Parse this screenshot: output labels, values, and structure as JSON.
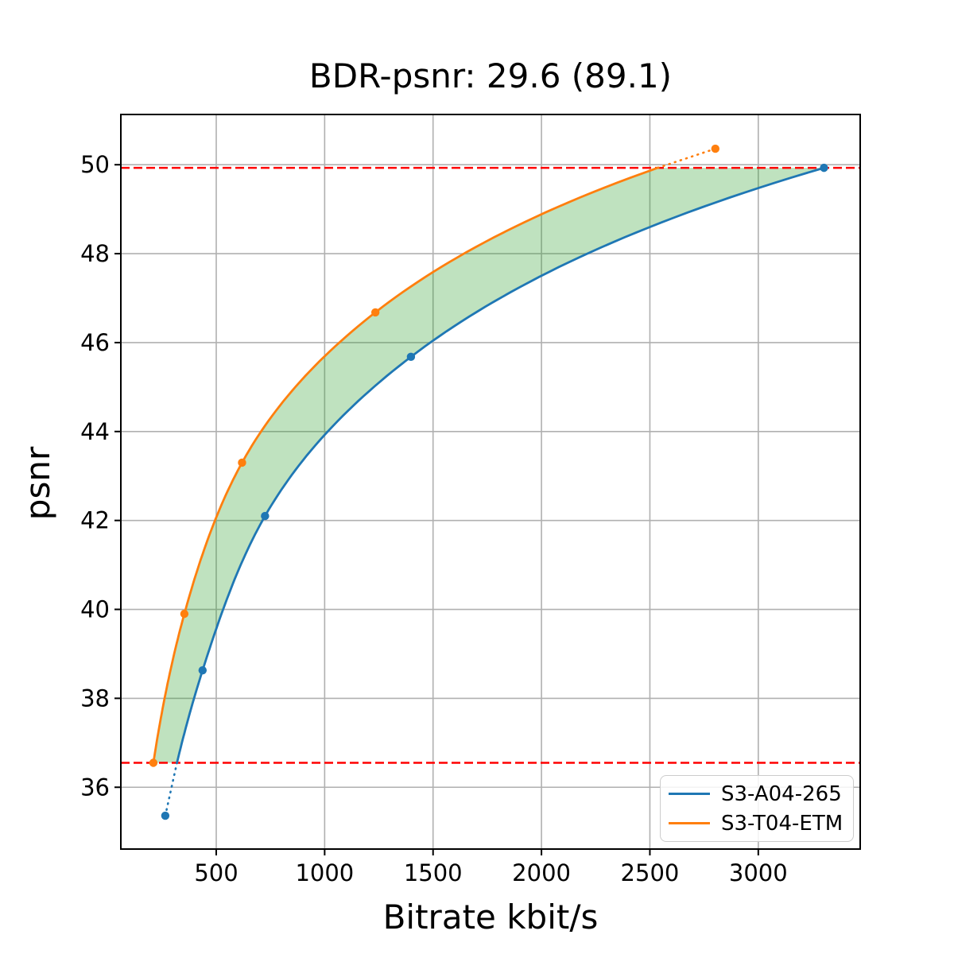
{
  "chart_data": {
    "type": "line",
    "title": "BDR-psnr: 29.6 (89.1)",
    "xlabel": "Bitrate kbit/s",
    "ylabel": "psnr",
    "xlim": [
      60,
      3470
    ],
    "ylim": [
      34.61,
      51.13
    ],
    "xticks": [
      500,
      1000,
      1500,
      2000,
      2500,
      3000
    ],
    "yticks": [
      36,
      38,
      40,
      42,
      44,
      46,
      48,
      50
    ],
    "grid": true,
    "grid_color": "#b0b0b0",
    "legend_position": "lower right",
    "series": [
      {
        "name": "S3-A04-265",
        "color": "#1f77b4",
        "points": [
          [
            265,
            35.36
          ],
          [
            437,
            38.63
          ],
          [
            725,
            42.1
          ],
          [
            1398,
            45.68
          ],
          [
            3303,
            49.93
          ]
        ]
      },
      {
        "name": "S3-T04-ETM",
        "color": "#ff7f0e",
        "points": [
          [
            210,
            36.55
          ],
          [
            353,
            39.9
          ],
          [
            619,
            43.3
          ],
          [
            1234,
            46.68
          ],
          [
            2802,
            50.36
          ]
        ]
      }
    ],
    "overlap_region": {
      "psnr_low": 36.55,
      "psnr_high": 49.93,
      "boundary_line_color": "#ff0000",
      "fill_color": "#2ca02c",
      "fill_opacity": 0.3
    },
    "annotations": {
      "bd_rate": "29.6",
      "bd_rate_secondary": "89.1"
    }
  }
}
